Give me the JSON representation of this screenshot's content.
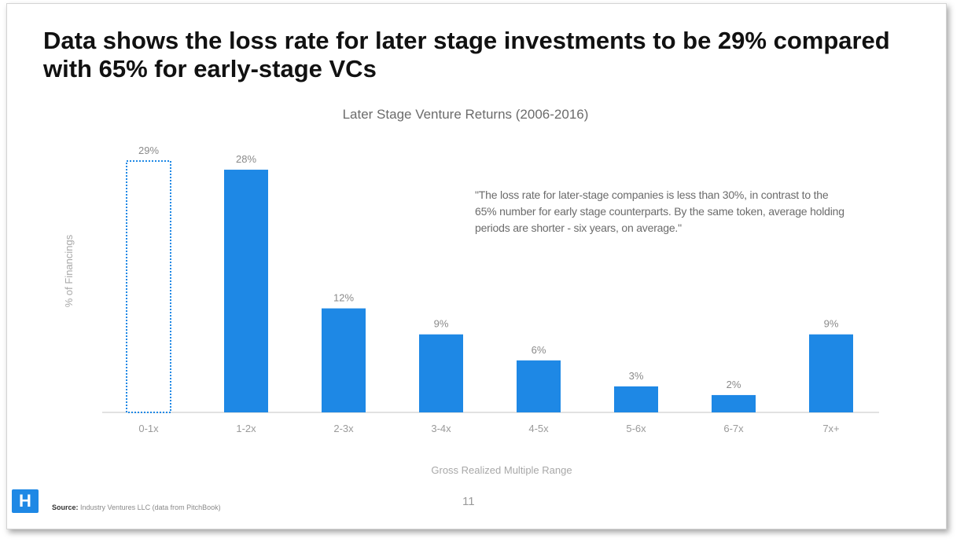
{
  "slide": {
    "headline": "Data shows the loss rate for later stage investments to be 29% compared with 65% for early-stage VCs",
    "quote": "\"The loss rate for later-stage companies is less than 30%, in contrast to the 65% number for early stage counterparts. By the same token, average holding periods are shorter - six years, on average.\"",
    "logo_text": "H",
    "source_label": "Source:",
    "source_text": "Industry Ventures LLC (data from PitchBook)",
    "page_number": "11"
  },
  "colors": {
    "bar": "#1e88e5",
    "highlight_outline": "#1e88e5",
    "axis": "#d9d9d9"
  },
  "chart_data": {
    "type": "bar",
    "title": "Later Stage Venture Returns (2006-2016)",
    "xlabel": "Gross Realized Multiple Range",
    "ylabel": "% of Financings",
    "categories": [
      "0-1x",
      "1-2x",
      "2-3x",
      "3-4x",
      "4-5x",
      "5-6x",
      "6-7x",
      "7x+"
    ],
    "values": [
      29,
      28,
      12,
      9,
      6,
      3,
      2,
      9
    ],
    "value_labels": [
      "29%",
      "28%",
      "12%",
      "9%",
      "6%",
      "3%",
      "2%",
      "9%"
    ],
    "highlighted_category": "0-1x",
    "highlight_style": "dotted-outline",
    "ylim": [
      0,
      29
    ],
    "grid": false,
    "legend": "none"
  }
}
